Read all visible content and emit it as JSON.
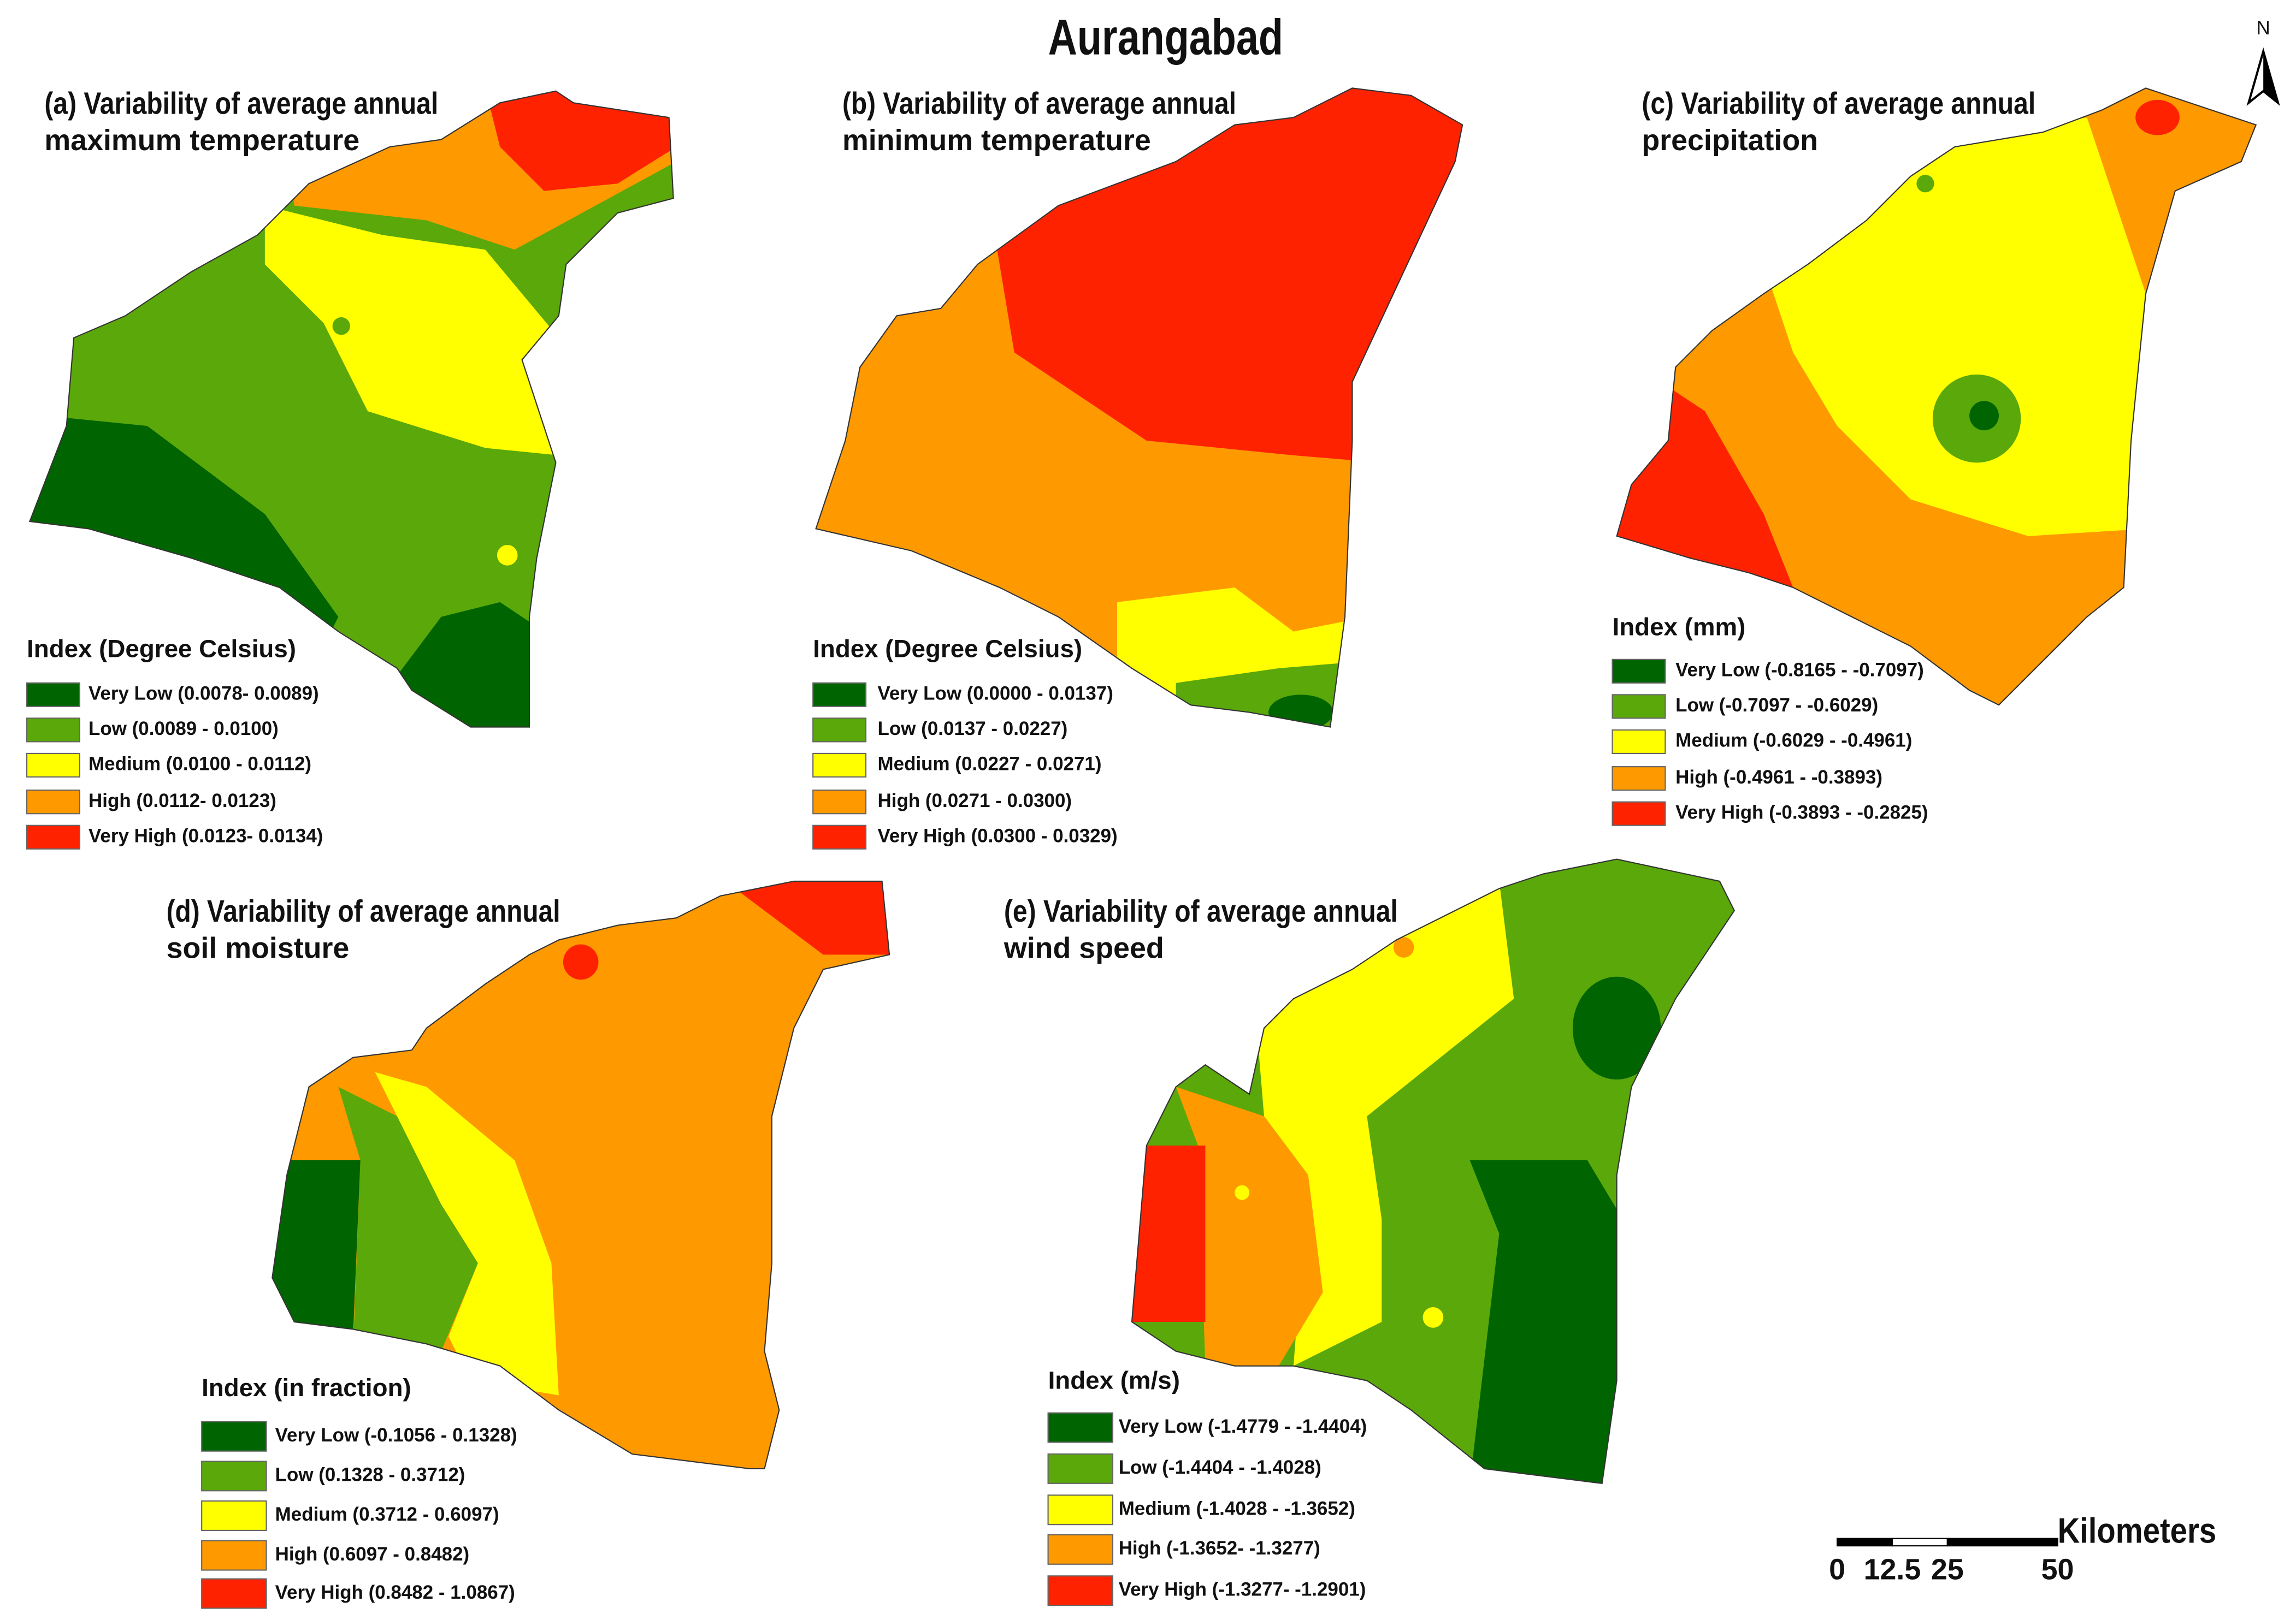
{
  "title": "Aurangabad",
  "north": "N",
  "class_colors": [
    "#006400",
    "#5aa80a",
    "#ffff00",
    "#ff9900",
    "#ff2200"
  ],
  "panels": [
    {
      "title": [
        "(a) Variability of average annual",
        "maximum temperature"
      ],
      "legend_title": "Index (Degree Celsius)",
      "legend": [
        "Very Low (0.0078- 0.0089)",
        "Low (0.0089 - 0.0100)",
        "Medium (0.0100 - 0.0112)",
        "High (0.0112- 0.0123)",
        "Very High (0.0123- 0.0134)"
      ]
    },
    {
      "title": [
        "(b) Variability of average annual",
        "minimum temperature"
      ],
      "legend_title": "Index (Degree Celsius)",
      "legend": [
        "Very Low (0.0000 - 0.0137)",
        "Low (0.0137 - 0.0227)",
        "Medium (0.0227 - 0.0271)",
        "High (0.0271 - 0.0300)",
        "Very High (0.0300 - 0.0329)"
      ]
    },
    {
      "title": [
        "(c) Variability of average annual",
        "precipitation"
      ],
      "legend_title": "Index (mm)",
      "legend": [
        "Very Low (-0.8165 - -0.7097)",
        "Low (-0.7097 - -0.6029)",
        "Medium (-0.6029 - -0.4961)",
        "High (-0.4961 - -0.3893)",
        "Very High (-0.3893 - -0.2825)"
      ]
    },
    {
      "title": [
        "(d) Variability of average annual",
        "soil moisture"
      ],
      "legend_title": "Index (in fraction)",
      "legend": [
        "Very Low (-0.1056 - 0.1328)",
        "Low (0.1328 - 0.3712)",
        "Medium (0.3712 - 0.6097)",
        "High (0.6097 - 0.8482)",
        "Very High (0.8482 - 1.0867)"
      ]
    },
    {
      "title": [
        "(e) Variability of average annual",
        "wind speed"
      ],
      "legend_title": "Index (m/s)",
      "legend": [
        "Very Low (-1.4779 - -1.4404)",
        "Low (-1.4404 - -1.4028)",
        "Medium (-1.4028 - -1.3652)",
        "High (-1.3652- -1.3277)",
        "Very High (-1.3277- -1.2901)"
      ]
    }
  ],
  "scale_bar": {
    "unit": "Kilometers",
    "ticks": [
      0,
      12.5,
      25,
      50
    ]
  }
}
